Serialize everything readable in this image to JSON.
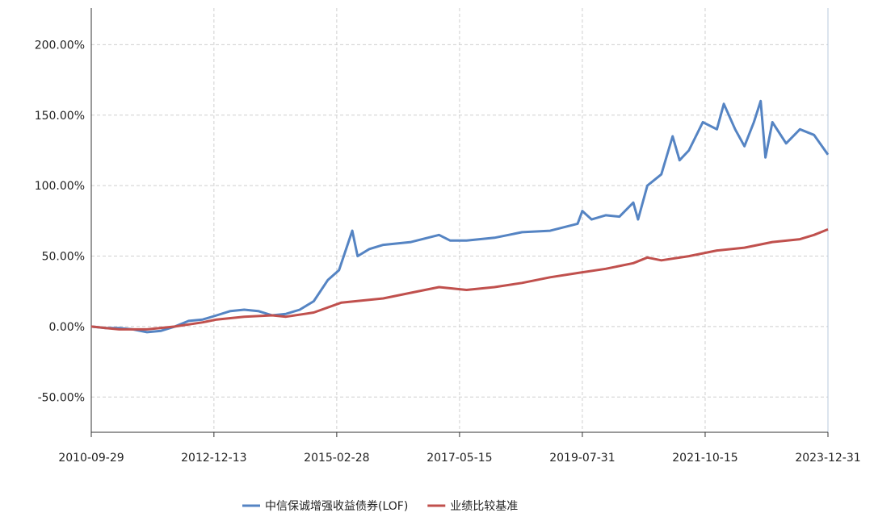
{
  "chart_data": {
    "type": "line",
    "xlim": [
      "2010-09-29",
      "2023-12-31"
    ],
    "xticks": [
      "2010-09-29",
      "2012-12-13",
      "2015-02-28",
      "2017-05-15",
      "2019-07-31",
      "2021-10-15",
      "2023-12-31"
    ],
    "ylim": [
      -75,
      226
    ],
    "yticks": [
      {
        "value": -50,
        "label": "-50.00%"
      },
      {
        "value": 0,
        "label": "0.00%"
      },
      {
        "value": 50,
        "label": "50.00%"
      },
      {
        "value": 100,
        "label": "100.00%"
      },
      {
        "value": 150,
        "label": "150.00%"
      },
      {
        "value": 200,
        "label": "200.00%"
      }
    ],
    "grid": true,
    "legend": "bottom",
    "series": [
      {
        "name": "中信保诚增强收益债券(LOF)",
        "color": "#5584c3",
        "x": [
          "2010-09-29",
          "2010-12-31",
          "2011-03-31",
          "2011-06-30",
          "2011-09-30",
          "2011-12-31",
          "2012-03-31",
          "2012-06-30",
          "2012-09-30",
          "2012-12-31",
          "2013-03-31",
          "2013-06-30",
          "2013-09-30",
          "2013-12-31",
          "2014-03-31",
          "2014-06-30",
          "2014-09-30",
          "2014-12-31",
          "2015-03-15",
          "2015-06-10",
          "2015-07-15",
          "2015-09-30",
          "2015-12-31",
          "2016-06-30",
          "2016-12-31",
          "2017-03-15",
          "2017-06-30",
          "2017-12-31",
          "2018-06-30",
          "2018-12-31",
          "2019-06-30",
          "2019-07-31",
          "2019-09-30",
          "2019-12-31",
          "2020-03-31",
          "2020-06-30",
          "2020-07-31",
          "2020-09-30",
          "2020-12-31",
          "2021-03-15",
          "2021-04-30",
          "2021-06-30",
          "2021-09-30",
          "2021-12-31",
          "2022-02-15",
          "2022-04-30",
          "2022-06-30",
          "2022-08-31",
          "2022-10-15",
          "2022-11-15",
          "2022-12-31",
          "2023-03-31",
          "2023-06-30",
          "2023-09-30",
          "2023-12-31"
        ],
        "values": [
          0,
          -1,
          -1,
          -2,
          -4,
          -3,
          0,
          4,
          5,
          8,
          11,
          12,
          11,
          8,
          9,
          12,
          18,
          33,
          40,
          68,
          50,
          55,
          58,
          60,
          65,
          61,
          61,
          63,
          67,
          68,
          73,
          82,
          76,
          79,
          78,
          88,
          76,
          100,
          108,
          135,
          118,
          125,
          145,
          140,
          158,
          140,
          128,
          145,
          160,
          120,
          145,
          130,
          140,
          136,
          122
        ]
      },
      {
        "name": "业绩比较基准",
        "color": "#c0504d",
        "x": [
          "2010-09-29",
          "2011-03-31",
          "2011-09-30",
          "2012-03-31",
          "2012-09-30",
          "2012-12-31",
          "2013-06-30",
          "2013-12-31",
          "2014-03-31",
          "2014-09-30",
          "2015-03-31",
          "2015-12-31",
          "2016-06-30",
          "2016-12-31",
          "2017-06-30",
          "2017-12-31",
          "2018-06-30",
          "2018-12-31",
          "2019-06-30",
          "2019-12-31",
          "2020-06-30",
          "2020-09-30",
          "2020-12-31",
          "2021-06-30",
          "2021-12-31",
          "2022-06-30",
          "2022-12-31",
          "2023-06-30",
          "2023-09-30",
          "2023-12-31"
        ],
        "values": [
          0,
          -2,
          -2,
          0,
          3,
          5,
          7,
          8,
          7,
          10,
          17,
          20,
          24,
          28,
          26,
          28,
          31,
          35,
          38,
          41,
          45,
          49,
          47,
          50,
          54,
          56,
          60,
          62,
          65,
          69
        ]
      }
    ]
  }
}
